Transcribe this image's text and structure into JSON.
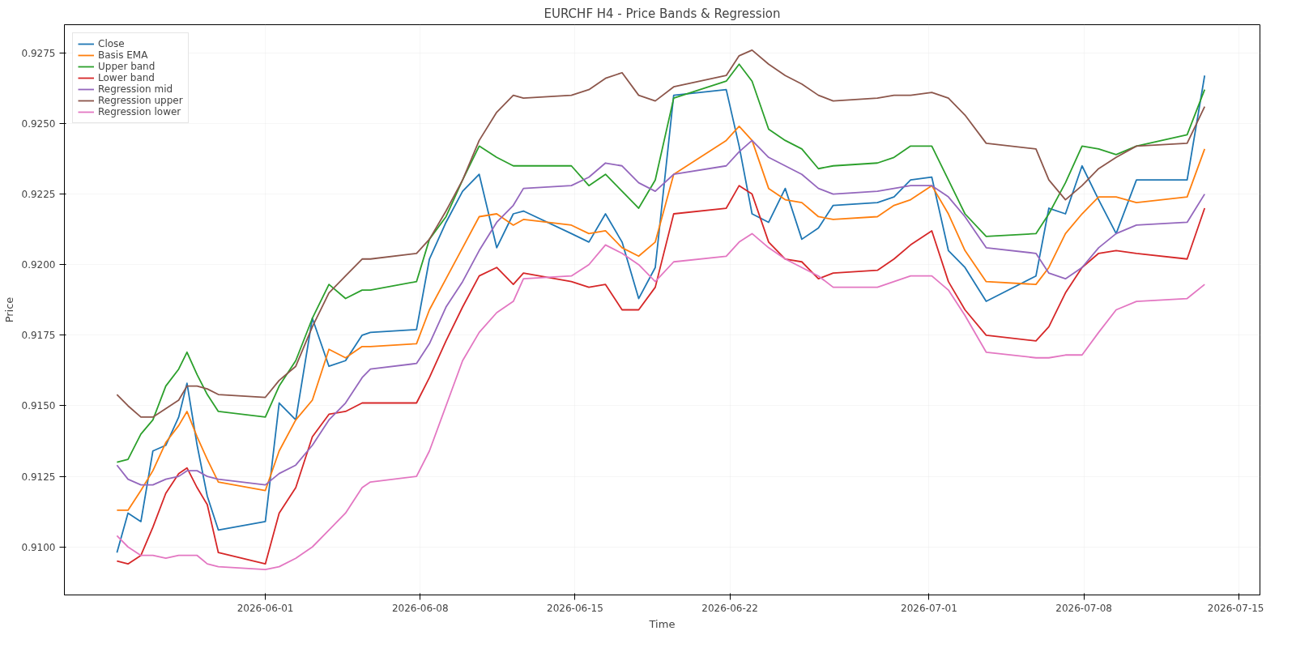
{
  "chart_data": {
    "type": "line",
    "title": "EURCHF H4 - Price Bands & Regression",
    "xlabel": "Time",
    "ylabel": "Price",
    "x": [
      "2026-05-25T07:00",
      "2026-05-25T19:00",
      "2026-05-26T09:00",
      "2026-05-26T22:00",
      "2026-05-27T12:00",
      "2026-05-28T02:00",
      "2026-05-28T11:00",
      "2026-05-28T22:00",
      "2026-05-29T09:00",
      "2026-05-29T21:00",
      "2026-06-01T00:00",
      "2026-06-01T15:00",
      "2026-06-02T09:00",
      "2026-06-03T03:00",
      "2026-06-03T21:00",
      "2026-06-04T15:00",
      "2026-06-05T09:00",
      "2026-06-05T18:00",
      "2026-06-07T20:00",
      "2026-06-08T10:00",
      "2026-06-09T04:00",
      "2026-06-09T22:00",
      "2026-06-10T16:00",
      "2026-06-11T11:00",
      "2026-06-12T05:00",
      "2026-06-12T16:00",
      "2026-06-14T20:00",
      "2026-06-15T15:00",
      "2026-06-16T09:00",
      "2026-06-17T03:00",
      "2026-06-17T21:00",
      "2026-06-18T15:00",
      "2026-06-19T11:00",
      "2026-06-21T20:00",
      "2026-06-22T10:00",
      "2026-06-23T00:00",
      "2026-06-23T18:00",
      "2026-06-24T12:00",
      "2026-06-25T06:00",
      "2026-06-26T00:00",
      "2026-06-26T16:00",
      "2026-06-28T16:00",
      "2026-06-29T10:00",
      "2026-06-30T04:00",
      "2026-07-01T03:00",
      "2026-07-01T21:00",
      "2026-07-02T15:00",
      "2026-07-03T14:00",
      "2026-07-05T20:00",
      "2026-07-06T10:00",
      "2026-07-07T04:00",
      "2026-07-07T22:00",
      "2026-07-08T16:00",
      "2026-07-09T11:00",
      "2026-07-10T09:00",
      "2026-07-12T16:00",
      "2026-07-13T11:00"
    ],
    "series": [
      {
        "name": "Close",
        "color": "#1f77b4",
        "values": [
          0.9098,
          0.9112,
          0.9109,
          0.9134,
          0.9136,
          0.9146,
          0.9158,
          0.9136,
          0.9118,
          0.9106,
          0.9109,
          0.9151,
          0.9145,
          0.9181,
          0.9164,
          0.9166,
          0.9175,
          0.9176,
          0.9177,
          0.9202,
          0.9215,
          0.9226,
          0.9232,
          0.9206,
          0.9218,
          0.9219,
          0.9211,
          0.9208,
          0.9218,
          0.9208,
          0.9188,
          0.9199,
          0.926,
          0.9262,
          0.9242,
          0.9218,
          0.9215,
          0.9227,
          0.9209,
          0.9213,
          0.9221,
          0.9222,
          0.9224,
          0.923,
          0.9231,
          0.9205,
          0.9199,
          0.9187,
          0.9196,
          0.922,
          0.9218,
          0.9235,
          0.9223,
          0.9211,
          0.923,
          0.923,
          0.9267
        ]
      },
      {
        "name": "Basis EMA",
        "color": "#ff7f0e",
        "values": [
          0.9113,
          0.9113,
          0.912,
          0.9127,
          0.9137,
          0.9143,
          0.9148,
          0.9139,
          0.9131,
          0.9123,
          0.912,
          0.9134,
          0.9145,
          0.9152,
          0.917,
          0.9167,
          0.9171,
          0.9171,
          0.9172,
          0.9184,
          0.9195,
          0.9206,
          0.9217,
          0.9218,
          0.9214,
          0.9216,
          0.9214,
          0.9211,
          0.9212,
          0.9206,
          0.9203,
          0.9208,
          0.9232,
          0.9244,
          0.9249,
          0.9244,
          0.9227,
          0.9223,
          0.9222,
          0.9217,
          0.9216,
          0.9217,
          0.9221,
          0.9223,
          0.9228,
          0.9218,
          0.9205,
          0.9194,
          0.9193,
          0.9199,
          0.9211,
          0.9218,
          0.9224,
          0.9224,
          0.9222,
          0.9224,
          0.9241
        ]
      },
      {
        "name": "Upper band",
        "color": "#2ca02c",
        "values": [
          0.913,
          0.9131,
          0.914,
          0.9145,
          0.9157,
          0.9163,
          0.9169,
          0.9161,
          0.9154,
          0.9148,
          0.9146,
          0.9157,
          0.9166,
          0.9181,
          0.9193,
          0.9188,
          0.9191,
          0.9191,
          0.9194,
          0.9209,
          0.9217,
          0.923,
          0.9242,
          0.9238,
          0.9235,
          0.9235,
          0.9235,
          0.9228,
          0.9232,
          0.9226,
          0.922,
          0.923,
          0.9259,
          0.9265,
          0.9271,
          0.9265,
          0.9248,
          0.9244,
          0.9241,
          0.9234,
          0.9235,
          0.9236,
          0.9238,
          0.9242,
          0.9242,
          0.923,
          0.9218,
          0.921,
          0.9211,
          0.9218,
          0.9229,
          0.9242,
          0.9241,
          0.9239,
          0.9242,
          0.9246,
          0.9262
        ]
      },
      {
        "name": "Lower band",
        "color": "#d62728",
        "values": [
          0.9095,
          0.9094,
          0.9097,
          0.9107,
          0.9119,
          0.9126,
          0.9128,
          0.9121,
          0.9115,
          0.9098,
          0.9094,
          0.9112,
          0.9121,
          0.9139,
          0.9147,
          0.9148,
          0.9151,
          0.9151,
          0.9151,
          0.916,
          0.9173,
          0.9185,
          0.9196,
          0.9199,
          0.9193,
          0.9197,
          0.9194,
          0.9192,
          0.9193,
          0.9184,
          0.9184,
          0.9192,
          0.9218,
          0.922,
          0.9228,
          0.9225,
          0.9208,
          0.9202,
          0.9201,
          0.9195,
          0.9197,
          0.9198,
          0.9202,
          0.9207,
          0.9212,
          0.9194,
          0.9184,
          0.9175,
          0.9173,
          0.9178,
          0.919,
          0.9199,
          0.9204,
          0.9205,
          0.9204,
          0.9202,
          0.922
        ]
      },
      {
        "name": "Regression mid",
        "color": "#9467bd",
        "values": [
          0.9129,
          0.9124,
          0.9122,
          0.9122,
          0.9124,
          0.9125,
          0.9127,
          0.9127,
          0.9125,
          0.9124,
          0.9122,
          0.9126,
          0.9129,
          0.9136,
          0.9145,
          0.9151,
          0.916,
          0.9163,
          0.9165,
          0.9172,
          0.9185,
          0.9194,
          0.9205,
          0.9215,
          0.9221,
          0.9227,
          0.9228,
          0.9231,
          0.9236,
          0.9235,
          0.9229,
          0.9226,
          0.9232,
          0.9235,
          0.924,
          0.9244,
          0.9238,
          0.9235,
          0.9232,
          0.9227,
          0.9225,
          0.9226,
          0.9227,
          0.9228,
          0.9228,
          0.9224,
          0.9217,
          0.9206,
          0.9204,
          0.9197,
          0.9195,
          0.9199,
          0.9206,
          0.9211,
          0.9214,
          0.9215,
          0.9225
        ]
      },
      {
        "name": "Regression upper",
        "color": "#8c564b",
        "values": [
          0.9154,
          0.915,
          0.9146,
          0.9146,
          0.9149,
          0.9152,
          0.9157,
          0.9157,
          0.9156,
          0.9154,
          0.9153,
          0.9159,
          0.9164,
          0.9178,
          0.919,
          0.9196,
          0.9202,
          0.9202,
          0.9204,
          0.9209,
          0.9219,
          0.923,
          0.9244,
          0.9254,
          0.926,
          0.9259,
          0.926,
          0.9262,
          0.9266,
          0.9268,
          0.926,
          0.9258,
          0.9263,
          0.9267,
          0.9274,
          0.9276,
          0.9271,
          0.9267,
          0.9264,
          0.926,
          0.9258,
          0.9259,
          0.926,
          0.926,
          0.9261,
          0.9259,
          0.9253,
          0.9243,
          0.9241,
          0.923,
          0.9223,
          0.9228,
          0.9234,
          0.9238,
          0.9242,
          0.9243,
          0.9256
        ]
      },
      {
        "name": "Regression lower",
        "color": "#e377c2",
        "values": [
          0.9104,
          0.91,
          0.9097,
          0.9097,
          0.9096,
          0.9097,
          0.9097,
          0.9097,
          0.9094,
          0.9093,
          0.9092,
          0.9093,
          0.9096,
          0.91,
          0.9106,
          0.9112,
          0.9121,
          0.9123,
          0.9125,
          0.9134,
          0.915,
          0.9166,
          0.9176,
          0.9183,
          0.9187,
          0.9195,
          0.9196,
          0.92,
          0.9207,
          0.9204,
          0.92,
          0.9194,
          0.9201,
          0.9203,
          0.9208,
          0.9211,
          0.9206,
          0.9202,
          0.9199,
          0.9196,
          0.9192,
          0.9192,
          0.9194,
          0.9196,
          0.9196,
          0.9191,
          0.9182,
          0.9169,
          0.9167,
          0.9167,
          0.9168,
          0.9168,
          0.9176,
          0.9184,
          0.9187,
          0.9188,
          0.9193
        ]
      }
    ],
    "xlim": [
      "2026-05-22T22:00",
      "2026-07-15T23:00"
    ],
    "xticks": [
      {
        "value": "2026-06-01",
        "label": "2026-06-01"
      },
      {
        "value": "2026-06-08",
        "label": "2026-06-08"
      },
      {
        "value": "2026-06-15",
        "label": "2026-06-15"
      },
      {
        "value": "2026-06-22",
        "label": "2026-06-22"
      },
      {
        "value": "2026-07-01",
        "label": "2026-07-01"
      },
      {
        "value": "2026-07-08",
        "label": "2026-07-08"
      },
      {
        "value": "2026-07-15",
        "label": "2026-07-15"
      }
    ],
    "ylim": [
      0.9083,
      0.9285
    ],
    "yticks": [
      {
        "value": 0.91,
        "label": "0.9100"
      },
      {
        "value": 0.9125,
        "label": "0.9125"
      },
      {
        "value": 0.915,
        "label": "0.9150"
      },
      {
        "value": 0.9175,
        "label": "0.9175"
      },
      {
        "value": 0.92,
        "label": "0.9200"
      },
      {
        "value": 0.9225,
        "label": "0.9225"
      },
      {
        "value": 0.925,
        "label": "0.9250"
      },
      {
        "value": 0.9275,
        "label": "0.9275"
      }
    ],
    "grid": true,
    "legend": "top left",
    "line_style": "solid",
    "marker": "none"
  }
}
